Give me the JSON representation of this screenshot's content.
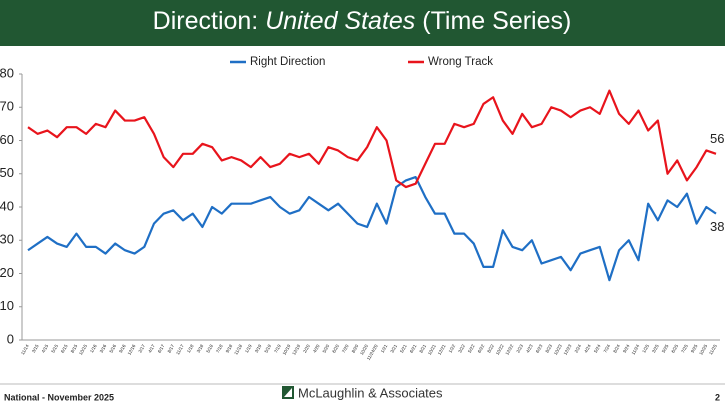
{
  "header": {
    "title_start": "Direction:",
    "title_italic": "United States",
    "title_end": "(Time Series)"
  },
  "chart_data": {
    "type": "line",
    "categories": [
      "11/14",
      "3/15",
      "4/15",
      "5/15",
      "6/15",
      "8/15",
      "10/15",
      "1/16",
      "3/16",
      "5/16",
      "9/16",
      "12/16",
      "2/17",
      "4/17",
      "6/17",
      "8/17",
      "11/17",
      "1/18",
      "3/18",
      "5/18",
      "7/18",
      "9/18",
      "11/18",
      "1/19",
      "3/19",
      "5/19",
      "7/19",
      "10/19",
      "12/19",
      "2/20",
      "4/20",
      "5/20",
      "6/20",
      "7/20",
      "8/20",
      "10/20",
      "11/24/20",
      "1/21",
      "3/21",
      "5/21",
      "6/21",
      "8/21",
      "10/21",
      "12/21",
      "1/22",
      "3/22",
      "5/22",
      "6/22",
      "8/22",
      "10/22",
      "12/22",
      "2/23",
      "4/23",
      "6/23",
      "8/23",
      "10/23",
      "12/23",
      "2/24",
      "4/24",
      "5/24",
      "7/24",
      "8/24",
      "9/24",
      "11/24",
      "1/25",
      "3/25",
      "5/25",
      "6/25",
      "7/25",
      "9/25",
      "10/25",
      "11/25"
    ],
    "series": [
      {
        "name": "Right Direction",
        "color": "#1f6fc5",
        "values": [
          27,
          29,
          31,
          29,
          28,
          32,
          28,
          28,
          26,
          29,
          27,
          26,
          28,
          35,
          38,
          39,
          36,
          38,
          34,
          40,
          38,
          41,
          41,
          41,
          42,
          43,
          40,
          38,
          39,
          43,
          41,
          39,
          41,
          38,
          35,
          34,
          41,
          35,
          46,
          48,
          49,
          43,
          38,
          38,
          32,
          32,
          29,
          22,
          22,
          33,
          28,
          27,
          30,
          23,
          24,
          25,
          21,
          26,
          27,
          28,
          18,
          27,
          30,
          24,
          41,
          36,
          42,
          40,
          44,
          35,
          40,
          38
        ]
      },
      {
        "name": "Wrong Track",
        "color": "#e8141c",
        "values": [
          64,
          62,
          63,
          61,
          64,
          64,
          62,
          65,
          64,
          69,
          66,
          66,
          67,
          62,
          55,
          52,
          56,
          56,
          59,
          58,
          54,
          55,
          54,
          52,
          55,
          52,
          53,
          56,
          55,
          56,
          53,
          58,
          57,
          55,
          54,
          58,
          64,
          60,
          48,
          46,
          47,
          53,
          59,
          59,
          65,
          64,
          65,
          71,
          73,
          66,
          62,
          68,
          64,
          65,
          70,
          69,
          67,
          69,
          70,
          68,
          75,
          68,
          65,
          69,
          63,
          66,
          50,
          54,
          48,
          52,
          57,
          56
        ]
      }
    ],
    "ylim": [
      0,
      80
    ],
    "yticks": [
      0,
      10,
      20,
      30,
      40,
      50,
      60,
      70,
      80
    ],
    "grid": false,
    "legend": "top"
  },
  "footer": {
    "left": "National - November 2025",
    "brand": "McLaughlin & Associates",
    "page": "2"
  }
}
